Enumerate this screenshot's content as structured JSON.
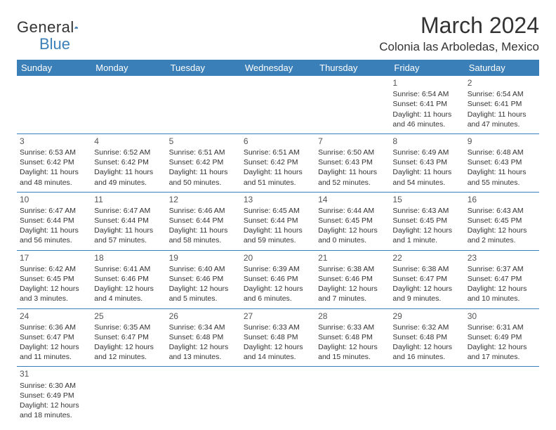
{
  "logo": {
    "general": "General",
    "blue": "Blue"
  },
  "title": "March 2024",
  "location": "Colonia las Arboledas, Mexico",
  "colors": {
    "header_bg": "#3b7fb8",
    "text": "#333333",
    "bg": "#ffffff"
  },
  "day_headers": [
    "Sunday",
    "Monday",
    "Tuesday",
    "Wednesday",
    "Thursday",
    "Friday",
    "Saturday"
  ],
  "weeks": [
    [
      null,
      null,
      null,
      null,
      null,
      {
        "n": "1",
        "sr": "6:54 AM",
        "ss": "6:41 PM",
        "dl": "11 hours and 46 minutes."
      },
      {
        "n": "2",
        "sr": "6:54 AM",
        "ss": "6:41 PM",
        "dl": "11 hours and 47 minutes."
      }
    ],
    [
      {
        "n": "3",
        "sr": "6:53 AM",
        "ss": "6:42 PM",
        "dl": "11 hours and 48 minutes."
      },
      {
        "n": "4",
        "sr": "6:52 AM",
        "ss": "6:42 PM",
        "dl": "11 hours and 49 minutes."
      },
      {
        "n": "5",
        "sr": "6:51 AM",
        "ss": "6:42 PM",
        "dl": "11 hours and 50 minutes."
      },
      {
        "n": "6",
        "sr": "6:51 AM",
        "ss": "6:42 PM",
        "dl": "11 hours and 51 minutes."
      },
      {
        "n": "7",
        "sr": "6:50 AM",
        "ss": "6:43 PM",
        "dl": "11 hours and 52 minutes."
      },
      {
        "n": "8",
        "sr": "6:49 AM",
        "ss": "6:43 PM",
        "dl": "11 hours and 54 minutes."
      },
      {
        "n": "9",
        "sr": "6:48 AM",
        "ss": "6:43 PM",
        "dl": "11 hours and 55 minutes."
      }
    ],
    [
      {
        "n": "10",
        "sr": "6:47 AM",
        "ss": "6:44 PM",
        "dl": "11 hours and 56 minutes."
      },
      {
        "n": "11",
        "sr": "6:47 AM",
        "ss": "6:44 PM",
        "dl": "11 hours and 57 minutes."
      },
      {
        "n": "12",
        "sr": "6:46 AM",
        "ss": "6:44 PM",
        "dl": "11 hours and 58 minutes."
      },
      {
        "n": "13",
        "sr": "6:45 AM",
        "ss": "6:44 PM",
        "dl": "11 hours and 59 minutes."
      },
      {
        "n": "14",
        "sr": "6:44 AM",
        "ss": "6:45 PM",
        "dl": "12 hours and 0 minutes."
      },
      {
        "n": "15",
        "sr": "6:43 AM",
        "ss": "6:45 PM",
        "dl": "12 hours and 1 minute."
      },
      {
        "n": "16",
        "sr": "6:43 AM",
        "ss": "6:45 PM",
        "dl": "12 hours and 2 minutes."
      }
    ],
    [
      {
        "n": "17",
        "sr": "6:42 AM",
        "ss": "6:45 PM",
        "dl": "12 hours and 3 minutes."
      },
      {
        "n": "18",
        "sr": "6:41 AM",
        "ss": "6:46 PM",
        "dl": "12 hours and 4 minutes."
      },
      {
        "n": "19",
        "sr": "6:40 AM",
        "ss": "6:46 PM",
        "dl": "12 hours and 5 minutes."
      },
      {
        "n": "20",
        "sr": "6:39 AM",
        "ss": "6:46 PM",
        "dl": "12 hours and 6 minutes."
      },
      {
        "n": "21",
        "sr": "6:38 AM",
        "ss": "6:46 PM",
        "dl": "12 hours and 7 minutes."
      },
      {
        "n": "22",
        "sr": "6:38 AM",
        "ss": "6:47 PM",
        "dl": "12 hours and 9 minutes."
      },
      {
        "n": "23",
        "sr": "6:37 AM",
        "ss": "6:47 PM",
        "dl": "12 hours and 10 minutes."
      }
    ],
    [
      {
        "n": "24",
        "sr": "6:36 AM",
        "ss": "6:47 PM",
        "dl": "12 hours and 11 minutes."
      },
      {
        "n": "25",
        "sr": "6:35 AM",
        "ss": "6:47 PM",
        "dl": "12 hours and 12 minutes."
      },
      {
        "n": "26",
        "sr": "6:34 AM",
        "ss": "6:48 PM",
        "dl": "12 hours and 13 minutes."
      },
      {
        "n": "27",
        "sr": "6:33 AM",
        "ss": "6:48 PM",
        "dl": "12 hours and 14 minutes."
      },
      {
        "n": "28",
        "sr": "6:33 AM",
        "ss": "6:48 PM",
        "dl": "12 hours and 15 minutes."
      },
      {
        "n": "29",
        "sr": "6:32 AM",
        "ss": "6:48 PM",
        "dl": "12 hours and 16 minutes."
      },
      {
        "n": "30",
        "sr": "6:31 AM",
        "ss": "6:49 PM",
        "dl": "12 hours and 17 minutes."
      }
    ],
    [
      {
        "n": "31",
        "sr": "6:30 AM",
        "ss": "6:49 PM",
        "dl": "12 hours and 18 minutes."
      },
      null,
      null,
      null,
      null,
      null,
      null
    ]
  ]
}
